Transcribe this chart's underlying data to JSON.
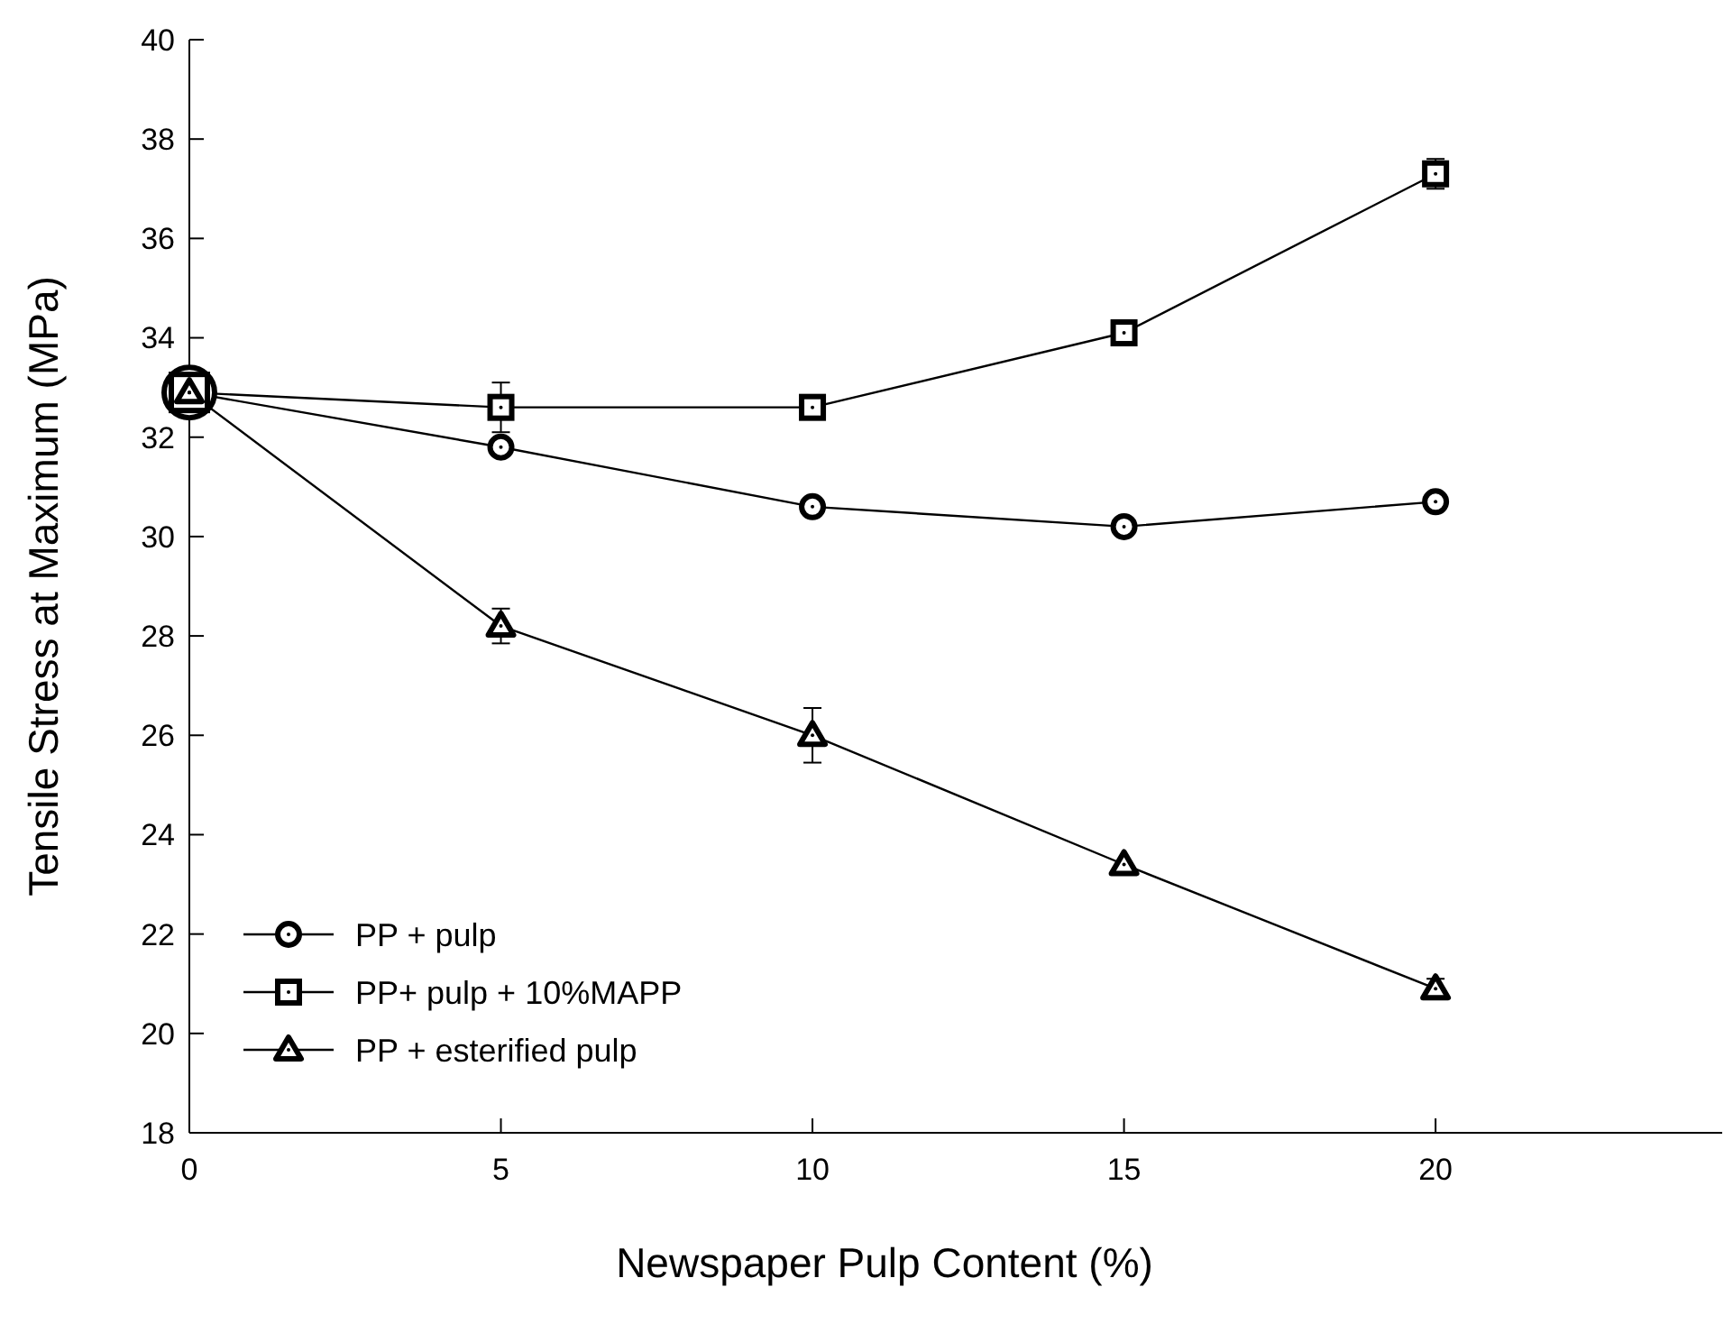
{
  "chart_data": {
    "type": "line",
    "xlabel": "Newspaper Pulp Content (%)",
    "ylabel": "Tensile Stress at Maximum (MPa)",
    "x": [
      0,
      5,
      10,
      15,
      20
    ],
    "xlim": [
      0,
      24.6
    ],
    "xticks": [
      0,
      5,
      10,
      15,
      20
    ],
    "ylim": [
      18,
      40
    ],
    "yticks": [
      18,
      20,
      22,
      24,
      26,
      28,
      30,
      32,
      34,
      36,
      38,
      40
    ],
    "grid": false,
    "legend": "bottom left",
    "line_style": "solid",
    "series": [
      {
        "name": "PP + pulp",
        "color": "#000000",
        "marker": "circle",
        "values": [
          32.9,
          31.8,
          30.6,
          30.2,
          30.7
        ],
        "errors": [
          null,
          0.15,
          0.15,
          null,
          0.1
        ]
      },
      {
        "name": "PP+ pulp + 10%MAPP",
        "color": "#000000",
        "marker": "square",
        "values": [
          32.9,
          32.6,
          32.6,
          34.1,
          37.3
        ],
        "errors": [
          null,
          0.5,
          null,
          null,
          0.3
        ]
      },
      {
        "name": "PP + esterified pulp",
        "color": "#000000",
        "marker": "triangle",
        "values": [
          32.9,
          28.2,
          26.0,
          23.4,
          20.9
        ],
        "errors": [
          null,
          0.35,
          0.55,
          null,
          0.2
        ]
      }
    ]
  }
}
